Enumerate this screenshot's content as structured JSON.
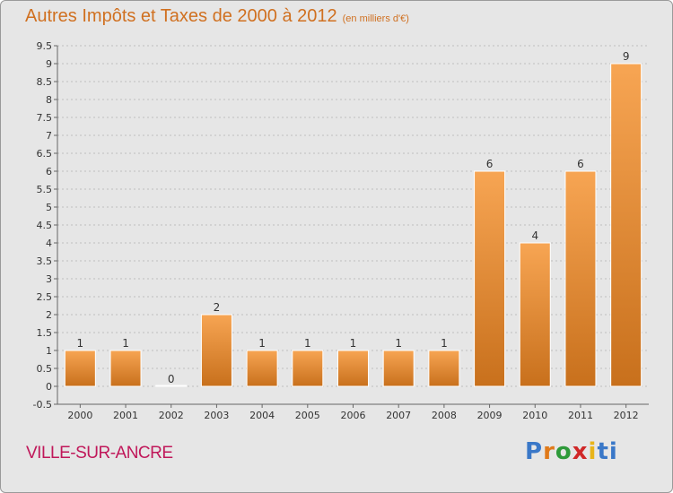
{
  "header": {
    "title": "Autres Impôts et Taxes de 2000 à 2012",
    "subtitle": "(en milliers d'€)"
  },
  "commune": "VILLE-SUR-ANCRE",
  "logo": {
    "text": "Proxiti",
    "letters": [
      "P",
      "r",
      "o",
      "x",
      "i",
      "ti"
    ]
  },
  "colors": {
    "bar_light": "#f7a553",
    "bar_dark": "#c8701c",
    "background": "#e6e6e6",
    "title": "#d07020",
    "commune": "#c0185a"
  },
  "chart_data": {
    "type": "bar",
    "categories": [
      "2000",
      "2001",
      "2002",
      "2003",
      "2004",
      "2005",
      "2006",
      "2007",
      "2008",
      "2009",
      "2010",
      "2011",
      "2012"
    ],
    "values": [
      1,
      1,
      0,
      2,
      1,
      1,
      1,
      1,
      1,
      6,
      4,
      6,
      9
    ],
    "data_labels": [
      "1",
      "1",
      "0",
      "2",
      "1",
      "1",
      "1",
      "1",
      "1",
      "6",
      "4",
      "6",
      "9"
    ],
    "ylim": [
      -0.5,
      9.5
    ],
    "yticks": [
      "-0.5",
      "0",
      "0.5",
      "1",
      "1.5",
      "2",
      "2.5",
      "3",
      "3.5",
      "4",
      "4.5",
      "5",
      "5.5",
      "6",
      "6.5",
      "7",
      "7.5",
      "8",
      "8.5",
      "9",
      "9.5"
    ],
    "grid": true
  }
}
